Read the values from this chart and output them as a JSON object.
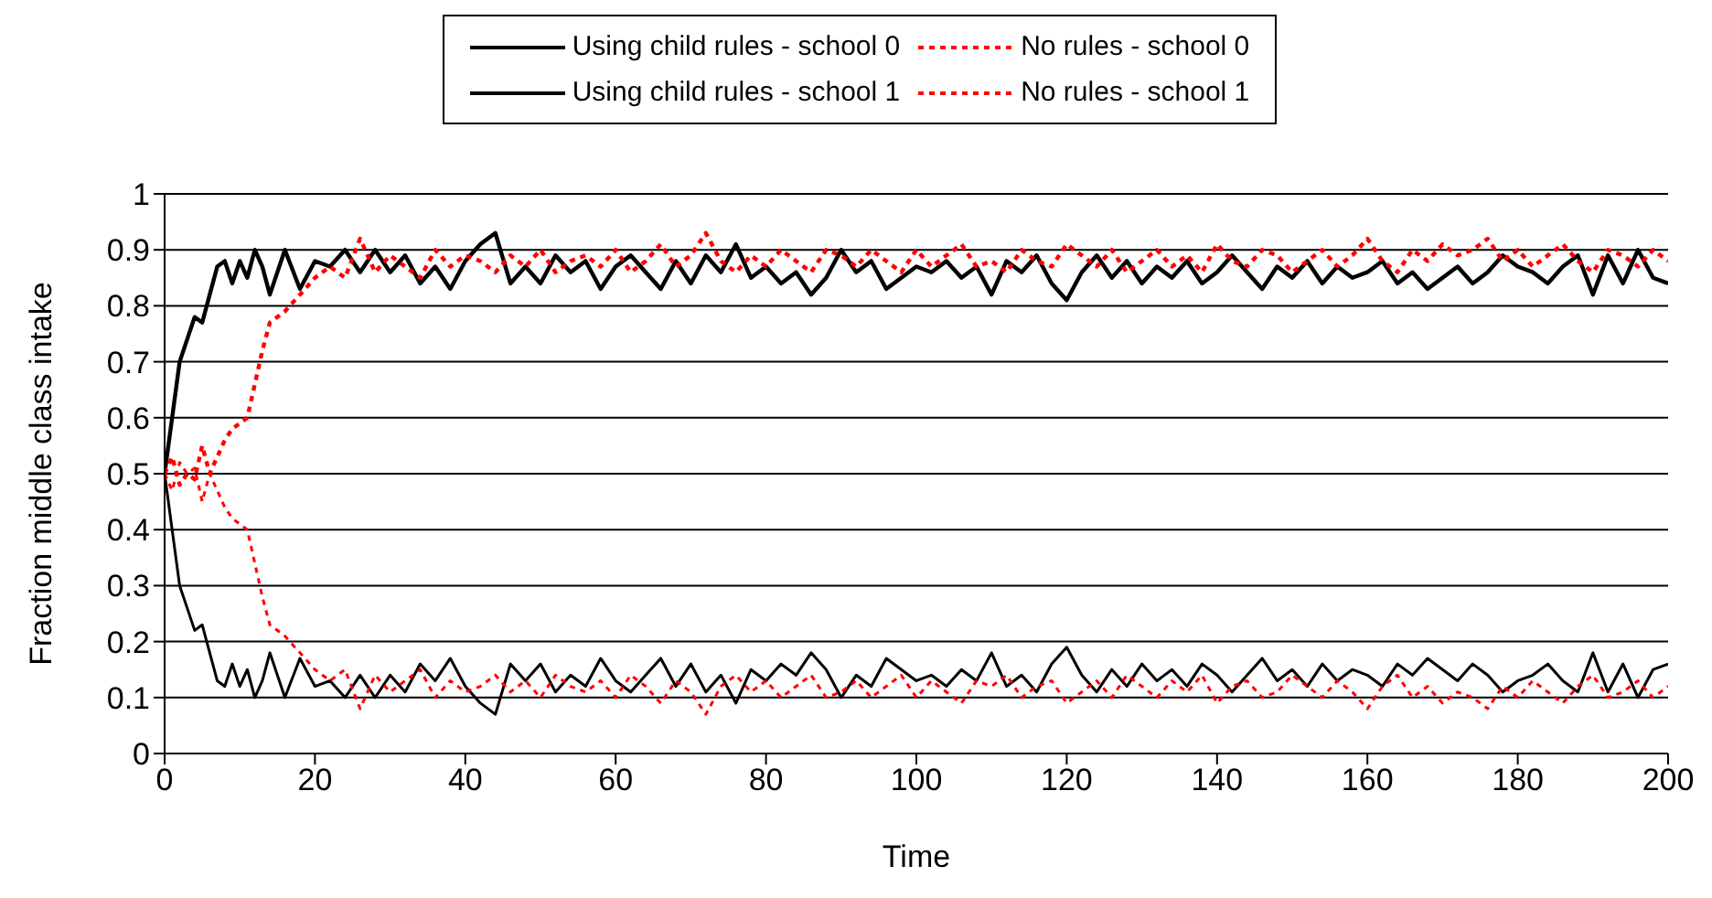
{
  "chart_data": {
    "type": "line",
    "xlabel": "Time",
    "ylabel": "Fraction middle class intake",
    "x": [
      0,
      1,
      2,
      3,
      4,
      5,
      6,
      7,
      8,
      9,
      10,
      11,
      12,
      13,
      14,
      16,
      18,
      20,
      22,
      24,
      26,
      28,
      30,
      32,
      34,
      36,
      38,
      40,
      42,
      44,
      46,
      48,
      50,
      52,
      54,
      56,
      58,
      60,
      62,
      64,
      66,
      68,
      70,
      72,
      74,
      76,
      78,
      80,
      82,
      84,
      86,
      88,
      90,
      92,
      94,
      96,
      98,
      100,
      102,
      104,
      106,
      108,
      110,
      112,
      114,
      116,
      118,
      120,
      122,
      124,
      126,
      128,
      130,
      132,
      134,
      136,
      138,
      140,
      142,
      144,
      146,
      148,
      150,
      152,
      154,
      156,
      158,
      160,
      162,
      164,
      166,
      168,
      170,
      172,
      174,
      176,
      178,
      180,
      182,
      184,
      186,
      188,
      190,
      192,
      194,
      196,
      198,
      200
    ],
    "series": [
      {
        "name": "Using child rules - school 0",
        "color": "#000000",
        "line_style": "solid",
        "values": [
          0.5,
          0.6,
          0.7,
          0.74,
          0.78,
          0.77,
          0.82,
          0.87,
          0.88,
          0.84,
          0.88,
          0.85,
          0.9,
          0.87,
          0.82,
          0.9,
          0.83,
          0.88,
          0.87,
          0.9,
          0.86,
          0.9,
          0.86,
          0.89,
          0.84,
          0.87,
          0.83,
          0.88,
          0.91,
          0.93,
          0.84,
          0.87,
          0.84,
          0.89,
          0.86,
          0.88,
          0.83,
          0.87,
          0.89,
          0.86,
          0.83,
          0.88,
          0.84,
          0.89,
          0.86,
          0.91,
          0.85,
          0.87,
          0.84,
          0.86,
          0.82,
          0.85,
          0.9,
          0.86,
          0.88,
          0.83,
          0.85,
          0.87,
          0.86,
          0.88,
          0.85,
          0.87,
          0.82,
          0.88,
          0.86,
          0.89,
          0.84,
          0.81,
          0.86,
          0.89,
          0.85,
          0.88,
          0.84,
          0.87,
          0.85,
          0.88,
          0.84,
          0.86,
          0.89,
          0.86,
          0.83,
          0.87,
          0.85,
          0.88,
          0.84,
          0.87,
          0.85,
          0.86,
          0.88,
          0.84,
          0.86,
          0.83,
          0.85,
          0.87,
          0.84,
          0.86,
          0.89,
          0.87,
          0.86,
          0.84,
          0.87,
          0.89,
          0.82,
          0.89,
          0.84,
          0.9,
          0.85,
          0.84
        ]
      },
      {
        "name": "No rules - school 0",
        "color": "#ff0000",
        "line_style": "dashed",
        "values": [
          0.5,
          0.53,
          0.48,
          0.5,
          0.49,
          0.55,
          0.5,
          0.53,
          0.56,
          0.58,
          0.59,
          0.6,
          0.66,
          0.72,
          0.77,
          0.79,
          0.82,
          0.85,
          0.87,
          0.85,
          0.92,
          0.86,
          0.89,
          0.87,
          0.85,
          0.9,
          0.87,
          0.89,
          0.88,
          0.86,
          0.89,
          0.87,
          0.9,
          0.86,
          0.88,
          0.89,
          0.87,
          0.9,
          0.86,
          0.88,
          0.91,
          0.87,
          0.89,
          0.93,
          0.88,
          0.86,
          0.89,
          0.87,
          0.9,
          0.88,
          0.86,
          0.9,
          0.89,
          0.87,
          0.9,
          0.88,
          0.86,
          0.9,
          0.87,
          0.89,
          0.91,
          0.87,
          0.88,
          0.86,
          0.9,
          0.88,
          0.87,
          0.91,
          0.89,
          0.87,
          0.9,
          0.86,
          0.88,
          0.9,
          0.87,
          0.89,
          0.86,
          0.91,
          0.88,
          0.87,
          0.9,
          0.89,
          0.86,
          0.88,
          0.9,
          0.87,
          0.89,
          0.92,
          0.88,
          0.86,
          0.9,
          0.88,
          0.91,
          0.89,
          0.9,
          0.92,
          0.88,
          0.9,
          0.87,
          0.89,
          0.91,
          0.88,
          0.86,
          0.9,
          0.89,
          0.87,
          0.9,
          0.88
        ]
      },
      {
        "name": "Using child rules - school 1",
        "color": "#000000",
        "line_style": "solid",
        "values": [
          0.5,
          0.4,
          0.3,
          0.26,
          0.22,
          0.23,
          0.18,
          0.13,
          0.12,
          0.16,
          0.12,
          0.15,
          0.1,
          0.13,
          0.18,
          0.1,
          0.17,
          0.12,
          0.13,
          0.1,
          0.14,
          0.1,
          0.14,
          0.11,
          0.16,
          0.13,
          0.17,
          0.12,
          0.09,
          0.07,
          0.16,
          0.13,
          0.16,
          0.11,
          0.14,
          0.12,
          0.17,
          0.13,
          0.11,
          0.14,
          0.17,
          0.12,
          0.16,
          0.11,
          0.14,
          0.09,
          0.15,
          0.13,
          0.16,
          0.14,
          0.18,
          0.15,
          0.1,
          0.14,
          0.12,
          0.17,
          0.15,
          0.13,
          0.14,
          0.12,
          0.15,
          0.13,
          0.18,
          0.12,
          0.14,
          0.11,
          0.16,
          0.19,
          0.14,
          0.11,
          0.15,
          0.12,
          0.16,
          0.13,
          0.15,
          0.12,
          0.16,
          0.14,
          0.11,
          0.14,
          0.17,
          0.13,
          0.15,
          0.12,
          0.16,
          0.13,
          0.15,
          0.14,
          0.12,
          0.16,
          0.14,
          0.17,
          0.15,
          0.13,
          0.16,
          0.14,
          0.11,
          0.13,
          0.14,
          0.16,
          0.13,
          0.11,
          0.18,
          0.11,
          0.16,
          0.1,
          0.15,
          0.16
        ]
      },
      {
        "name": "No rules - school 1",
        "color": "#ff0000",
        "line_style": "dashed",
        "values": [
          0.5,
          0.47,
          0.52,
          0.5,
          0.51,
          0.45,
          0.5,
          0.47,
          0.44,
          0.42,
          0.41,
          0.4,
          0.34,
          0.28,
          0.23,
          0.21,
          0.18,
          0.15,
          0.13,
          0.15,
          0.08,
          0.14,
          0.11,
          0.13,
          0.15,
          0.1,
          0.13,
          0.11,
          0.12,
          0.14,
          0.11,
          0.13,
          0.1,
          0.14,
          0.12,
          0.11,
          0.13,
          0.1,
          0.14,
          0.12,
          0.09,
          0.13,
          0.11,
          0.07,
          0.12,
          0.14,
          0.11,
          0.13,
          0.1,
          0.12,
          0.14,
          0.1,
          0.11,
          0.13,
          0.1,
          0.12,
          0.14,
          0.1,
          0.13,
          0.11,
          0.09,
          0.13,
          0.12,
          0.14,
          0.1,
          0.12,
          0.13,
          0.09,
          0.11,
          0.13,
          0.1,
          0.14,
          0.12,
          0.1,
          0.13,
          0.11,
          0.14,
          0.09,
          0.12,
          0.13,
          0.1,
          0.11,
          0.14,
          0.12,
          0.1,
          0.13,
          0.11,
          0.08,
          0.12,
          0.14,
          0.1,
          0.12,
          0.09,
          0.11,
          0.1,
          0.08,
          0.12,
          0.1,
          0.13,
          0.11,
          0.09,
          0.12,
          0.14,
          0.1,
          0.11,
          0.13,
          0.1,
          0.12
        ]
      }
    ],
    "xlim": [
      0,
      200
    ],
    "xticks": [
      0,
      20,
      40,
      60,
      80,
      100,
      120,
      140,
      160,
      180,
      200
    ],
    "ylim": [
      0,
      1
    ],
    "yticks": [
      0,
      0.1,
      0.2,
      0.3,
      0.4,
      0.5,
      0.6,
      0.7,
      0.8,
      0.9,
      1
    ],
    "grid": "y",
    "legend": "top",
    "marker": "none"
  }
}
